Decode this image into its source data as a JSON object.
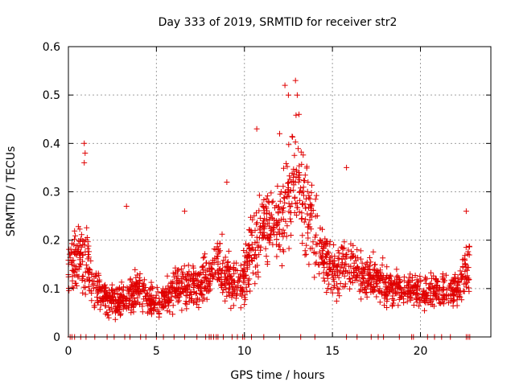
{
  "chart_data": {
    "type": "scatter",
    "title": "Day 333 of 2019, SRMTID for receiver str2",
    "xlabel": "GPS time / hours",
    "ylabel": "SRMTID / TECUs",
    "xlim": [
      0,
      24
    ],
    "ylim": [
      0,
      0.6
    ],
    "x_ticks": [
      0,
      5,
      10,
      15,
      20
    ],
    "x_tick_labels": [
      "0",
      "5",
      "10",
      "15",
      "20"
    ],
    "y_ticks": [
      0,
      0.1,
      0.2,
      0.3,
      0.4,
      0.5,
      0.6
    ],
    "y_tick_labels": [
      "0",
      "0.1",
      "0.2",
      "0.3",
      "0.4",
      "0.5",
      "0.6"
    ],
    "grid": true,
    "marker": "+",
    "series_color": "#e00000",
    "envelope": {
      "description": "approximate median SRMTID (TECU) vs GPS hour used to depict the dense point cloud",
      "x": [
        0.0,
        0.5,
        1.0,
        1.5,
        2.0,
        2.5,
        3.0,
        3.5,
        4.0,
        4.5,
        5.0,
        5.5,
        6.0,
        6.5,
        7.0,
        7.5,
        8.0,
        8.5,
        9.0,
        9.5,
        10.0,
        10.5,
        11.0,
        11.5,
        12.0,
        12.5,
        13.0,
        13.5,
        14.0,
        14.5,
        15.0,
        15.5,
        16.0,
        16.5,
        17.0,
        17.5,
        18.0,
        18.5,
        19.0,
        19.5,
        20.0,
        20.5,
        21.0,
        21.5,
        22.0,
        22.5,
        22.8
      ],
      "median": [
        0.15,
        0.16,
        0.16,
        0.1,
        0.08,
        0.07,
        0.07,
        0.08,
        0.1,
        0.08,
        0.07,
        0.08,
        0.1,
        0.1,
        0.11,
        0.11,
        0.13,
        0.15,
        0.13,
        0.1,
        0.13,
        0.19,
        0.22,
        0.22,
        0.24,
        0.3,
        0.33,
        0.27,
        0.22,
        0.16,
        0.15,
        0.14,
        0.16,
        0.13,
        0.12,
        0.12,
        0.11,
        0.1,
        0.1,
        0.1,
        0.09,
        0.09,
        0.1,
        0.1,
        0.1,
        0.13,
        0.14
      ],
      "spread": [
        0.05,
        0.06,
        0.07,
        0.04,
        0.03,
        0.03,
        0.03,
        0.04,
        0.04,
        0.03,
        0.03,
        0.03,
        0.04,
        0.04,
        0.04,
        0.04,
        0.04,
        0.05,
        0.05,
        0.04,
        0.05,
        0.07,
        0.08,
        0.08,
        0.09,
        0.1,
        0.1,
        0.09,
        0.07,
        0.05,
        0.05,
        0.05,
        0.06,
        0.04,
        0.04,
        0.04,
        0.04,
        0.03,
        0.03,
        0.03,
        0.03,
        0.03,
        0.03,
        0.03,
        0.03,
        0.05,
        0.05
      ]
    },
    "notable_points": [
      {
        "x": 0.9,
        "y": 0.4
      },
      {
        "x": 0.95,
        "y": 0.38
      },
      {
        "x": 0.9,
        "y": 0.36
      },
      {
        "x": 3.3,
        "y": 0.27
      },
      {
        "x": 6.6,
        "y": 0.26
      },
      {
        "x": 9.0,
        "y": 0.32
      },
      {
        "x": 10.7,
        "y": 0.43
      },
      {
        "x": 12.0,
        "y": 0.42
      },
      {
        "x": 12.3,
        "y": 0.52
      },
      {
        "x": 12.5,
        "y": 0.5
      },
      {
        "x": 12.9,
        "y": 0.53
      },
      {
        "x": 13.0,
        "y": 0.5
      },
      {
        "x": 13.1,
        "y": 0.46
      },
      {
        "x": 15.8,
        "y": 0.35
      },
      {
        "x": 22.6,
        "y": 0.26
      }
    ],
    "zero_points_x": [
      0.1,
      0.2,
      0.35,
      0.7,
      1.0,
      1.5,
      2.2,
      2.6,
      3.2,
      3.5,
      4.1,
      4.4,
      5.0,
      5.4,
      6.0,
      6.6,
      7.3,
      7.8,
      8.0,
      8.1,
      8.25,
      8.4,
      8.5,
      8.8,
      9.3,
      9.6,
      9.9,
      10.0,
      10.4,
      11.1,
      12.0,
      13.2,
      14.0,
      15.8,
      16.4,
      17.2,
      17.6,
      17.9,
      18.8,
      19.5,
      19.6,
      20.4,
      20.8,
      21.2,
      21.7,
      22.6,
      22.7,
      22.8
    ]
  }
}
